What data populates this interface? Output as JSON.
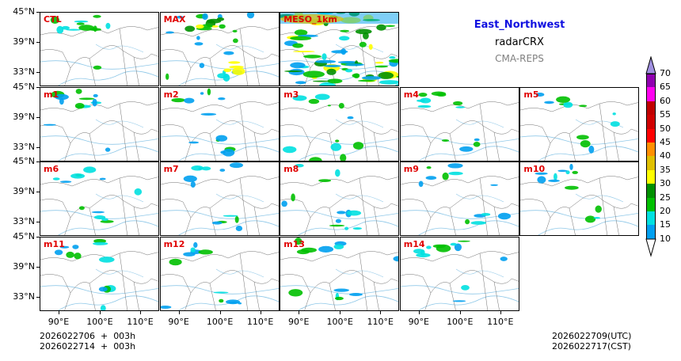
{
  "info": {
    "region": "East_Northwest",
    "variable": "radarCRX",
    "model": "CMA-REPS",
    "region_color": "#1010e0",
    "model_color": "#808080"
  },
  "axes": {
    "lat_labels": [
      "45°N",
      "39°N",
      "33°N"
    ],
    "lon_labels": [
      "90°E",
      "100°E",
      "110°E"
    ]
  },
  "panels": [
    {
      "label": "CTL",
      "row": 0,
      "col": 0
    },
    {
      "label": "MAX",
      "row": 0,
      "col": 1
    },
    {
      "label": "MESO_1km",
      "row": 0,
      "col": 2
    },
    {
      "label": "m1",
      "row": 1,
      "col": 0
    },
    {
      "label": "m2",
      "row": 1,
      "col": 1
    },
    {
      "label": "m3",
      "row": 1,
      "col": 2
    },
    {
      "label": "m4",
      "row": 1,
      "col": 3
    },
    {
      "label": "m5",
      "row": 1,
      "col": 4
    },
    {
      "label": "m6",
      "row": 2,
      "col": 0
    },
    {
      "label": "m7",
      "row": 2,
      "col": 1
    },
    {
      "label": "m8",
      "row": 2,
      "col": 2
    },
    {
      "label": "m9",
      "row": 2,
      "col": 3
    },
    {
      "label": "m10",
      "row": 2,
      "col": 4
    },
    {
      "label": "m11",
      "row": 3,
      "col": 0
    },
    {
      "label": "m12",
      "row": 3,
      "col": 1
    },
    {
      "label": "m13",
      "row": 3,
      "col": 2
    },
    {
      "label": "m14",
      "row": 3,
      "col": 3
    }
  ],
  "colorbar": {
    "labels": [
      "10",
      "15",
      "20",
      "25",
      "30",
      "35",
      "40",
      "45",
      "50",
      "55",
      "60",
      "65",
      "70"
    ],
    "colors": [
      "#00a0f0",
      "#00e0e0",
      "#00c000",
      "#009000",
      "#ffff00",
      "#e0c000",
      "#ff9000",
      "#ff0000",
      "#d00000",
      "#c00000",
      "#ff00f0",
      "#9000b0",
      "#a090e0"
    ]
  },
  "footer": {
    "init_line1": "2026022706  +  003h",
    "init_line2": "2026022714  +  003h",
    "valid_utc": "2026022709(UTC)",
    "valid_cst": "2026022717(CST)"
  }
}
